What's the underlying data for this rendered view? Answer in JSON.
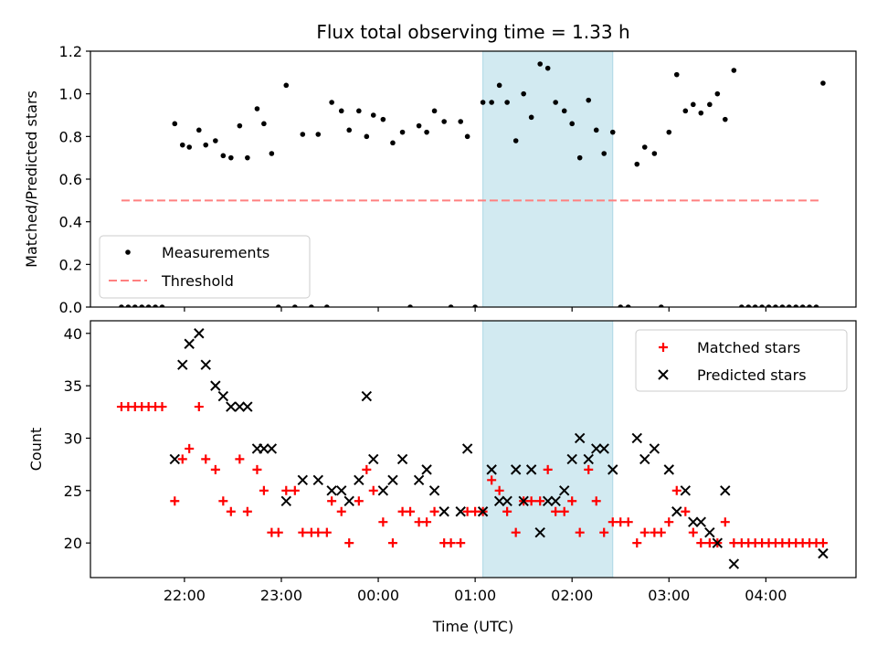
{
  "chart_data": {
    "title": "Flux total observing time = 1.33 h",
    "x_axis": {
      "label": "Time (UTC)",
      "ticks": [
        {
          "t": 22.0,
          "label": "22:00"
        },
        {
          "t": 23.0,
          "label": "23:00"
        },
        {
          "t": 24.0,
          "label": "00:00"
        },
        {
          "t": 25.0,
          "label": "01:00"
        },
        {
          "t": 26.0,
          "label": "02:00"
        },
        {
          "t": 27.0,
          "label": "03:00"
        },
        {
          "t": 28.0,
          "label": "04:00"
        }
      ],
      "range": [
        21.03,
        28.93
      ]
    },
    "shaded_interval": {
      "start": 25.08,
      "end": 26.42,
      "color": "#add8e6"
    },
    "top": {
      "type": "scatter",
      "ylabel": "Matched/Predicted stars",
      "ylim": [
        0,
        1.2
      ],
      "yticks": [
        "0.0",
        "0.2",
        "0.4",
        "0.6",
        "0.8",
        "1.0",
        "1.2"
      ],
      "yticks_values": [
        0,
        0.2,
        0.4,
        0.6,
        0.8,
        1.0,
        1.2
      ],
      "threshold": {
        "name": "Threshold",
        "y": 0.5,
        "x_range": [
          21.35,
          28.55
        ],
        "color": "#ff8080"
      },
      "measurements": {
        "name": "Measurements",
        "color": "#000000",
        "points": [
          [
            21.35,
            0
          ],
          [
            21.42,
            0
          ],
          [
            21.49,
            0
          ],
          [
            21.56,
            0
          ],
          [
            21.63,
            0
          ],
          [
            21.7,
            0
          ],
          [
            21.77,
            0
          ],
          [
            21.9,
            0.86
          ],
          [
            21.98,
            0.76
          ],
          [
            22.05,
            0.75
          ],
          [
            22.15,
            0.83
          ],
          [
            22.22,
            0.76
          ],
          [
            22.32,
            0.78
          ],
          [
            22.4,
            0.71
          ],
          [
            22.48,
            0.7
          ],
          [
            22.57,
            0.85
          ],
          [
            22.65,
            0.7
          ],
          [
            22.75,
            0.93
          ],
          [
            22.82,
            0.86
          ],
          [
            22.9,
            0.72
          ],
          [
            22.97,
            0
          ],
          [
            23.05,
            1.04
          ],
          [
            23.14,
            0
          ],
          [
            23.22,
            0.81
          ],
          [
            23.31,
            0
          ],
          [
            23.38,
            0.81
          ],
          [
            23.47,
            0
          ],
          [
            23.52,
            0.96
          ],
          [
            23.62,
            0.92
          ],
          [
            23.7,
            0.83
          ],
          [
            23.8,
            0.92
          ],
          [
            23.88,
            0.8
          ],
          [
            23.95,
            0.9
          ],
          [
            24.05,
            0.88
          ],
          [
            24.15,
            0.77
          ],
          [
            24.25,
            0.82
          ],
          [
            24.33,
            0
          ],
          [
            24.42,
            0.85
          ],
          [
            24.5,
            0.82
          ],
          [
            24.58,
            0.92
          ],
          [
            24.68,
            0.87
          ],
          [
            24.75,
            0
          ],
          [
            24.85,
            0.87
          ],
          [
            24.92,
            0.8
          ],
          [
            25.0,
            0
          ],
          [
            25.08,
            0.96
          ],
          [
            25.17,
            0.96
          ],
          [
            25.25,
            1.04
          ],
          [
            25.33,
            0.96
          ],
          [
            25.42,
            0.78
          ],
          [
            25.5,
            1.0
          ],
          [
            25.58,
            0.89
          ],
          [
            25.67,
            1.14
          ],
          [
            25.75,
            1.12
          ],
          [
            25.83,
            0.96
          ],
          [
            25.92,
            0.92
          ],
          [
            26.0,
            0.86
          ],
          [
            26.08,
            0.7
          ],
          [
            26.17,
            0.97
          ],
          [
            26.25,
            0.83
          ],
          [
            26.33,
            0.72
          ],
          [
            26.42,
            0.82
          ],
          [
            26.5,
            0
          ],
          [
            26.58,
            0
          ],
          [
            26.67,
            0.67
          ],
          [
            26.75,
            0.75
          ],
          [
            26.85,
            0.72
          ],
          [
            26.92,
            0
          ],
          [
            27.0,
            0.82
          ],
          [
            27.08,
            1.09
          ],
          [
            27.17,
            0.92
          ],
          [
            27.25,
            0.95
          ],
          [
            27.33,
            0.91
          ],
          [
            27.42,
            0.95
          ],
          [
            27.5,
            1.0
          ],
          [
            27.58,
            0.88
          ],
          [
            27.67,
            1.11
          ],
          [
            27.75,
            0
          ],
          [
            27.82,
            0
          ],
          [
            27.89,
            0
          ],
          [
            27.96,
            0
          ],
          [
            28.03,
            0
          ],
          [
            28.1,
            0
          ],
          [
            28.17,
            0
          ],
          [
            28.24,
            0
          ],
          [
            28.31,
            0
          ],
          [
            28.38,
            0
          ],
          [
            28.45,
            0
          ],
          [
            28.52,
            0
          ],
          [
            28.59,
            1.05
          ]
        ]
      },
      "legend_position": "lower-left"
    },
    "bottom": {
      "type": "scatter",
      "ylabel": "Count",
      "ylim": [
        16.7,
        41.2
      ],
      "yticks": [
        "20",
        "25",
        "30",
        "35",
        "40"
      ],
      "yticks_values": [
        20,
        25,
        30,
        35,
        40
      ],
      "matched": {
        "name": "Matched stars",
        "color": "#ff0000",
        "points": [
          [
            21.35,
            33
          ],
          [
            21.42,
            33
          ],
          [
            21.49,
            33
          ],
          [
            21.56,
            33
          ],
          [
            21.63,
            33
          ],
          [
            21.7,
            33
          ],
          [
            21.77,
            33
          ],
          [
            21.9,
            24
          ],
          [
            21.98,
            28
          ],
          [
            22.05,
            29
          ],
          [
            22.15,
            33
          ],
          [
            22.22,
            28
          ],
          [
            22.32,
            27
          ],
          [
            22.4,
            24
          ],
          [
            22.48,
            23
          ],
          [
            22.57,
            28
          ],
          [
            22.65,
            23
          ],
          [
            22.75,
            27
          ],
          [
            22.82,
            25
          ],
          [
            22.9,
            21
          ],
          [
            22.97,
            21
          ],
          [
            23.05,
            25
          ],
          [
            23.14,
            25
          ],
          [
            23.22,
            21
          ],
          [
            23.31,
            21
          ],
          [
            23.38,
            21
          ],
          [
            23.47,
            21
          ],
          [
            23.52,
            24
          ],
          [
            23.62,
            23
          ],
          [
            23.7,
            20
          ],
          [
            23.8,
            24
          ],
          [
            23.88,
            27
          ],
          [
            23.95,
            25
          ],
          [
            24.05,
            22
          ],
          [
            24.15,
            20
          ],
          [
            24.25,
            23
          ],
          [
            24.33,
            23
          ],
          [
            24.42,
            22
          ],
          [
            24.5,
            22
          ],
          [
            24.58,
            23
          ],
          [
            24.68,
            20
          ],
          [
            24.75,
            20
          ],
          [
            24.85,
            20
          ],
          [
            24.92,
            23
          ],
          [
            25.0,
            23
          ],
          [
            25.08,
            23
          ],
          [
            25.17,
            26
          ],
          [
            25.25,
            25
          ],
          [
            25.33,
            23
          ],
          [
            25.42,
            21
          ],
          [
            25.5,
            24
          ],
          [
            25.58,
            24
          ],
          [
            25.67,
            24
          ],
          [
            25.75,
            27
          ],
          [
            25.83,
            23
          ],
          [
            25.92,
            23
          ],
          [
            26.0,
            24
          ],
          [
            26.08,
            21
          ],
          [
            26.17,
            27
          ],
          [
            26.25,
            24
          ],
          [
            26.33,
            21
          ],
          [
            26.42,
            22
          ],
          [
            26.5,
            22
          ],
          [
            26.58,
            22
          ],
          [
            26.67,
            20
          ],
          [
            26.75,
            21
          ],
          [
            26.85,
            21
          ],
          [
            26.92,
            21
          ],
          [
            27.0,
            22
          ],
          [
            27.08,
            25
          ],
          [
            27.17,
            23
          ],
          [
            27.25,
            21
          ],
          [
            27.33,
            20
          ],
          [
            27.42,
            20
          ],
          [
            27.5,
            20
          ],
          [
            27.58,
            22
          ],
          [
            27.67,
            20
          ],
          [
            27.75,
            20
          ],
          [
            27.82,
            20
          ],
          [
            27.89,
            20
          ],
          [
            27.96,
            20
          ],
          [
            28.03,
            20
          ],
          [
            28.1,
            20
          ],
          [
            28.17,
            20
          ],
          [
            28.24,
            20
          ],
          [
            28.31,
            20
          ],
          [
            28.38,
            20
          ],
          [
            28.45,
            20
          ],
          [
            28.52,
            20
          ],
          [
            28.59,
            20
          ]
        ]
      },
      "predicted": {
        "name": "Predicted stars",
        "color": "#000000",
        "points": [
          [
            21.9,
            28
          ],
          [
            21.98,
            37
          ],
          [
            22.05,
            39
          ],
          [
            22.15,
            40
          ],
          [
            22.22,
            37
          ],
          [
            22.32,
            35
          ],
          [
            22.4,
            34
          ],
          [
            22.48,
            33
          ],
          [
            22.57,
            33
          ],
          [
            22.65,
            33
          ],
          [
            22.75,
            29
          ],
          [
            22.82,
            29
          ],
          [
            22.9,
            29
          ],
          [
            23.05,
            24
          ],
          [
            23.22,
            26
          ],
          [
            23.38,
            26
          ],
          [
            23.52,
            25
          ],
          [
            23.62,
            25
          ],
          [
            23.7,
            24
          ],
          [
            23.8,
            26
          ],
          [
            23.88,
            34
          ],
          [
            23.95,
            28
          ],
          [
            24.05,
            25
          ],
          [
            24.15,
            26
          ],
          [
            24.25,
            28
          ],
          [
            24.42,
            26
          ],
          [
            24.5,
            27
          ],
          [
            24.58,
            25
          ],
          [
            24.68,
            23
          ],
          [
            24.85,
            23
          ],
          [
            24.92,
            29
          ],
          [
            25.08,
            23
          ],
          [
            25.17,
            27
          ],
          [
            25.25,
            24
          ],
          [
            25.33,
            24
          ],
          [
            25.42,
            27
          ],
          [
            25.5,
            24
          ],
          [
            25.58,
            27
          ],
          [
            25.67,
            21
          ],
          [
            25.75,
            24
          ],
          [
            25.83,
            24
          ],
          [
            25.92,
            25
          ],
          [
            26.0,
            28
          ],
          [
            26.08,
            30
          ],
          [
            26.17,
            28
          ],
          [
            26.25,
            29
          ],
          [
            26.33,
            29
          ],
          [
            26.42,
            27
          ],
          [
            26.67,
            30
          ],
          [
            26.75,
            28
          ],
          [
            26.85,
            29
          ],
          [
            27.0,
            27
          ],
          [
            27.08,
            23
          ],
          [
            27.17,
            25
          ],
          [
            27.25,
            22
          ],
          [
            27.33,
            22
          ],
          [
            27.42,
            21
          ],
          [
            27.5,
            20
          ],
          [
            27.58,
            25
          ],
          [
            27.67,
            18
          ],
          [
            28.59,
            19
          ]
        ]
      },
      "legend_position": "upper-right"
    }
  }
}
